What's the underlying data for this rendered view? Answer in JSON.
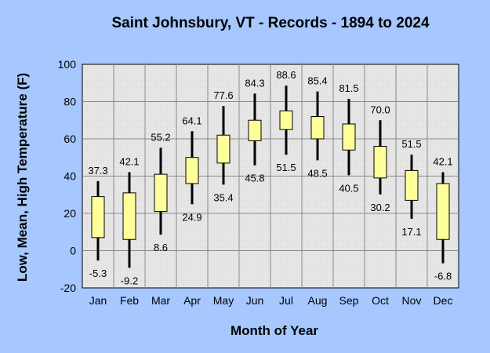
{
  "chart_data": {
    "type": "candlestick",
    "title": "Saint Johnsbury, VT - Records - 1894 to 2024",
    "xlabel": "Month of Year",
    "ylabel": "Low, Mean, High Temperature (F)",
    "ylim": [
      -20,
      100
    ],
    "yticks": [
      100,
      80,
      60,
      40,
      20,
      0,
      -20
    ],
    "grid": true,
    "categories": [
      "Jan",
      "Feb",
      "Mar",
      "Apr",
      "May",
      "Jun",
      "Jul",
      "Aug",
      "Sep",
      "Oct",
      "Nov",
      "Dec"
    ],
    "record_high": [
      37.3,
      42.1,
      55.2,
      64.1,
      77.6,
      84.3,
      88.6,
      85.4,
      81.5,
      70.0,
      51.5,
      42.1
    ],
    "record_low": [
      -5.3,
      -9.2,
      8.6,
      24.9,
      35.4,
      45.8,
      51.5,
      48.5,
      40.5,
      30.2,
      17.1,
      -6.8
    ],
    "high_labels": [
      "37.3",
      "42.1",
      "55.2",
      "64.1",
      "77.6",
      "84.3",
      "88.6",
      "85.4",
      "81.5",
      "70.0",
      "51.5",
      "42.1"
    ],
    "low_labels": [
      "-5.3",
      "-9.2",
      "8.6",
      "24.9",
      "35.4",
      "45.8",
      "51.5",
      "48.5",
      "40.5",
      "30.2",
      "17.1",
      "-6.8"
    ],
    "box_top": [
      29,
      31,
      41,
      50,
      62,
      70,
      75,
      72,
      68,
      56,
      43,
      36
    ],
    "box_bottom": [
      7,
      6,
      21,
      36,
      47,
      59,
      65,
      60,
      54,
      39,
      27,
      6
    ],
    "colors": {
      "background": "#a6c8ff",
      "plot": "#ebebeb",
      "box": "#ffff99",
      "line": "#000000"
    }
  }
}
